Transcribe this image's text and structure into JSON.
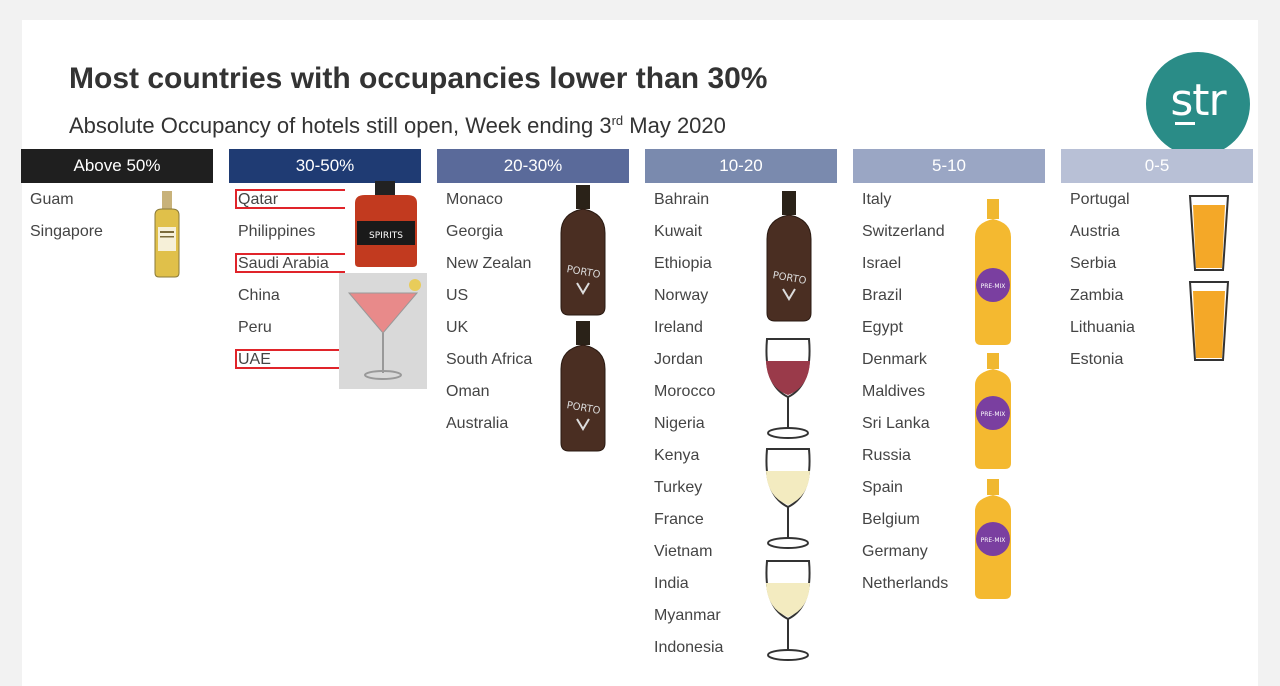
{
  "title": "Most countries with occupancies lower than 30%",
  "subtitle": {
    "prefix": "Absolute Occupancy of hotels still open, Week ending 3",
    "sup": "rd",
    "suffix": " May 2020"
  },
  "logo": {
    "text": "str"
  },
  "colors": {
    "above50": "#1f1f1f",
    "30_50": "#1f3b73",
    "20_30": "#5a6a9a",
    "10_20": "#7a8aae",
    "5_10": "#9aa6c4",
    "0_5": "#b8c0d6",
    "highlight": "#e0242a"
  },
  "columns": [
    {
      "header": "Above 50%",
      "countries": [
        "Guam",
        "Singapore"
      ],
      "drink_icon": "whisky-bottle-icon"
    },
    {
      "header": "30-50%",
      "countries": [
        "Qatar",
        "Philippines",
        "Saudi Arabia",
        "China",
        "Peru",
        "UAE"
      ],
      "highlighted": [
        "Qatar",
        "Saudi Arabia",
        "UAE"
      ],
      "drink_icon": "spirits-bottle-icon"
    },
    {
      "header": "20-30%",
      "countries": [
        "Monaco",
        "Georgia",
        "New Zealan",
        "US",
        "UK",
        "South Africa",
        "Oman",
        "Australia"
      ],
      "drink_icon": "porto-bottle-icon"
    },
    {
      "header": "10-20",
      "countries": [
        "Bahrain",
        "Kuwait",
        "Ethiopia",
        "Norway",
        "Ireland",
        "Jordan",
        "Morocco",
        "Nigeria",
        "Kenya",
        "Turkey",
        "France",
        "Vietnam",
        "India",
        "Myanmar",
        "Indonesia"
      ],
      "drink_icon": "wine-glass-icon"
    },
    {
      "header": "5-10",
      "countries": [
        "Italy",
        "Switzerland",
        "Israel",
        "Brazil",
        "Egypt",
        "Denmark",
        "Maldives",
        "Sri Lanka",
        "Russia",
        "Spain",
        "Belgium",
        "Germany",
        "Netherlands"
      ],
      "drink_icon": "premix-bottle-icon"
    },
    {
      "header": "0-5",
      "countries": [
        "Portugal",
        "Austria",
        "Serbia",
        "Zambia",
        "Lithuania",
        "Estonia"
      ],
      "drink_icon": "beer-glass-icon"
    }
  ],
  "labels": {
    "spirits": "SPIRITS",
    "porto": "PORTO",
    "premix": "PRE-MIX"
  }
}
